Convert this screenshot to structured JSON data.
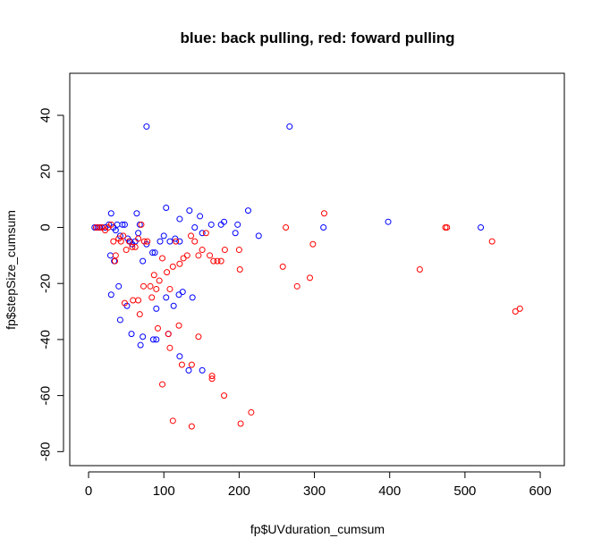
{
  "chart_data": {
    "type": "scatter",
    "title": "blue: back pulling, red: foward pulling",
    "xlabel": "fp$UVduration_cumsum",
    "ylabel": "fp$stepSize_cumsum",
    "xlim": [
      -25,
      632
    ],
    "ylim": [
      -85,
      55
    ],
    "x_ticks": [
      0,
      100,
      200,
      300,
      400,
      500,
      600
    ],
    "y_ticks": [
      -80,
      -60,
      -40,
      -20,
      0,
      20,
      40
    ],
    "grid": false,
    "legend": "none",
    "series": [
      {
        "color": "#0000ff",
        "points": [
          [
            8,
            0
          ],
          [
            12,
            0
          ],
          [
            15,
            0
          ],
          [
            18,
            0
          ],
          [
            22,
            0
          ],
          [
            27,
            1
          ],
          [
            30,
            5
          ],
          [
            33,
            0
          ],
          [
            36,
            -1
          ],
          [
            38,
            1
          ],
          [
            42,
            -3
          ],
          [
            45,
            1
          ],
          [
            48,
            1
          ],
          [
            52,
            -4
          ],
          [
            55,
            -5
          ],
          [
            58,
            -6
          ],
          [
            62,
            -5
          ],
          [
            64,
            5
          ],
          [
            68,
            1
          ],
          [
            66,
            -2
          ],
          [
            72,
            -12
          ],
          [
            77,
            -6
          ],
          [
            85,
            -9
          ],
          [
            88,
            -9
          ],
          [
            95,
            -5
          ],
          [
            100,
            -3
          ],
          [
            103,
            7
          ],
          [
            108,
            -5
          ],
          [
            115,
            -4
          ],
          [
            121,
            -5
          ],
          [
            121,
            3
          ],
          [
            134,
            6
          ],
          [
            141,
            0
          ],
          [
            148,
            4
          ],
          [
            151,
            -2
          ],
          [
            163,
            1
          ],
          [
            176,
            1
          ],
          [
            180,
            2
          ],
          [
            195,
            -2
          ],
          [
            198,
            1
          ],
          [
            212,
            6
          ],
          [
            226,
            -3
          ],
          [
            29,
            -10
          ],
          [
            34,
            -12
          ],
          [
            40,
            -21
          ],
          [
            30,
            -24
          ],
          [
            42,
            -33
          ],
          [
            51,
            -28
          ],
          [
            57,
            -38
          ],
          [
            69,
            -42
          ],
          [
            72,
            -39
          ],
          [
            86,
            -40
          ],
          [
            90,
            -40
          ],
          [
            90,
            -29
          ],
          [
            103,
            -25
          ],
          [
            106,
            -38
          ],
          [
            113,
            -28
          ],
          [
            120,
            -24
          ],
          [
            125,
            -23
          ],
          [
            121,
            -46
          ],
          [
            133,
            -51
          ],
          [
            138,
            -25
          ],
          [
            151,
            -51
          ],
          [
            77,
            36
          ],
          [
            267,
            36
          ],
          [
            312,
            0
          ],
          [
            398,
            2
          ],
          [
            521,
            0
          ]
        ]
      },
      {
        "color": "#ff0000",
        "points": [
          [
            10,
            0
          ],
          [
            14,
            0
          ],
          [
            18,
            0
          ],
          [
            22,
            -1
          ],
          [
            26,
            0
          ],
          [
            30,
            1
          ],
          [
            33,
            -5
          ],
          [
            36,
            -10
          ],
          [
            40,
            -4
          ],
          [
            43,
            -5
          ],
          [
            46,
            -3
          ],
          [
            50,
            -8
          ],
          [
            54,
            -5
          ],
          [
            58,
            -7
          ],
          [
            62,
            -7
          ],
          [
            66,
            -4
          ],
          [
            70,
            1
          ],
          [
            74,
            -5
          ],
          [
            78,
            -5
          ],
          [
            82,
            -21
          ],
          [
            87,
            -17
          ],
          [
            90,
            -22
          ],
          [
            94,
            -19
          ],
          [
            98,
            -11
          ],
          [
            104,
            -16
          ],
          [
            108,
            -22
          ],
          [
            112,
            -14
          ],
          [
            116,
            -5
          ],
          [
            121,
            -13
          ],
          [
            126,
            -11
          ],
          [
            131,
            -10
          ],
          [
            136,
            -3
          ],
          [
            141,
            -5
          ],
          [
            146,
            -10
          ],
          [
            151,
            -8
          ],
          [
            156,
            -2
          ],
          [
            161,
            -10
          ],
          [
            166,
            -12
          ],
          [
            171,
            -12
          ],
          [
            176,
            -12
          ],
          [
            181,
            -8
          ],
          [
            200,
            -8
          ],
          [
            201,
            -15
          ],
          [
            258,
            -14
          ],
          [
            262,
            0
          ],
          [
            277,
            -21
          ],
          [
            294,
            -18
          ],
          [
            298,
            -6
          ],
          [
            313,
            5
          ],
          [
            440,
            -15
          ],
          [
            474,
            0
          ],
          [
            476,
            0
          ],
          [
            536,
            -5
          ],
          [
            567,
            -30
          ],
          [
            573,
            -29
          ],
          [
            35,
            -12
          ],
          [
            48,
            -27
          ],
          [
            59,
            -26
          ],
          [
            66,
            -26
          ],
          [
            68,
            -31
          ],
          [
            73,
            -21
          ],
          [
            84,
            -25
          ],
          [
            92,
            -36
          ],
          [
            98,
            -56
          ],
          [
            106,
            -38
          ],
          [
            108,
            -43
          ],
          [
            112,
            -69
          ],
          [
            120,
            -35
          ],
          [
            124,
            -49
          ],
          [
            137,
            -49
          ],
          [
            137,
            -71
          ],
          [
            146,
            -39
          ],
          [
            164,
            -53
          ],
          [
            164,
            -54
          ],
          [
            180,
            -60
          ],
          [
            202,
            -70
          ],
          [
            216,
            -66
          ]
        ]
      }
    ]
  }
}
